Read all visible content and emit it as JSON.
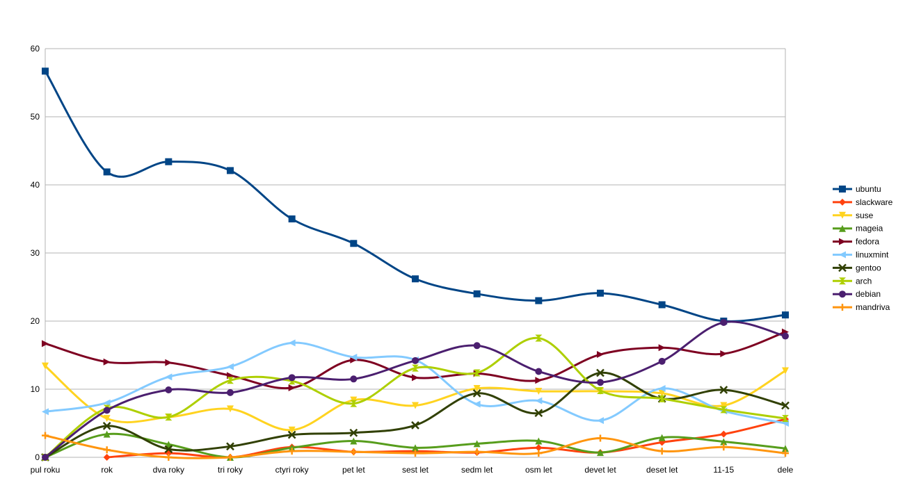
{
  "chart_data": {
    "type": "line",
    "smooth": true,
    "title": "",
    "xlabel": "",
    "ylabel": "",
    "ylim": [
      0,
      60
    ],
    "yticks": [
      0,
      10,
      20,
      30,
      40,
      50,
      60
    ],
    "grid": "horizontal",
    "legend_position": "right",
    "categories": [
      "pul roku",
      "rok",
      "dva roky",
      "tri roky",
      "ctyri roky",
      "pet let",
      "sest let",
      "sedm let",
      "osm let",
      "devet let",
      "deset let",
      "11-15",
      "dele"
    ],
    "series": [
      {
        "name": "ubuntu",
        "color": "#004586",
        "marker": "square",
        "values": [
          56.7,
          41.9,
          43.4,
          42.1,
          35.0,
          31.4,
          26.2,
          24.0,
          23.0,
          24.1,
          22.4,
          20.0,
          20.9
        ]
      },
      {
        "name": "slackware",
        "color": "#ff420e",
        "marker": "diamond",
        "values": [
          null,
          0,
          0.6,
          0,
          1.5,
          0.8,
          0.9,
          0.7,
          1.4,
          0.7,
          2.2,
          3.4,
          5.6
        ]
      },
      {
        "name": "suse",
        "color": "#ffd320",
        "marker": "triangle-down",
        "values": [
          13.4,
          5.7,
          5.9,
          7.1,
          4.0,
          8.4,
          7.6,
          10.1,
          9.7,
          9.7,
          9.4,
          7.6,
          12.7
        ]
      },
      {
        "name": "mageia",
        "color": "#579d1c",
        "marker": "triangle-up",
        "values": [
          0,
          3.4,
          1.9,
          0,
          1.4,
          2.4,
          1.4,
          2.0,
          2.4,
          0.7,
          2.9,
          2.3,
          1.3
        ]
      },
      {
        "name": "fedora",
        "color": "#7e0021",
        "marker": "triangle-right",
        "values": [
          16.7,
          14.0,
          13.9,
          12.0,
          10.2,
          14.3,
          11.7,
          12.3,
          11.3,
          15.1,
          16.1,
          15.2,
          18.4
        ]
      },
      {
        "name": "linuxmint",
        "color": "#83caff",
        "marker": "triangle-left",
        "values": [
          6.7,
          8.0,
          11.8,
          13.3,
          16.8,
          14.7,
          14.3,
          7.8,
          8.3,
          5.4,
          10.1,
          6.8,
          5.0
        ]
      },
      {
        "name": "gentoo",
        "color": "#314004",
        "marker": "x",
        "values": [
          0,
          4.6,
          1.2,
          1.6,
          3.3,
          3.6,
          4.7,
          9.4,
          6.5,
          12.4,
          8.6,
          9.9,
          7.6
        ]
      },
      {
        "name": "arch",
        "color": "#aecf00",
        "marker": "hourglass",
        "values": [
          0,
          7.2,
          5.9,
          11.3,
          11.2,
          7.9,
          13.1,
          12.4,
          17.5,
          9.8,
          8.6,
          7.0,
          5.7
        ]
      },
      {
        "name": "debian",
        "color": "#4b1f6f",
        "marker": "circle",
        "values": [
          0,
          6.9,
          9.9,
          9.5,
          11.7,
          11.5,
          14.2,
          16.4,
          12.6,
          11.0,
          14.1,
          19.8,
          17.8
        ]
      },
      {
        "name": "mandriva",
        "color": "#ff950e",
        "marker": "plus",
        "values": [
          3.2,
          1.1,
          0,
          0,
          0.9,
          0.8,
          0.6,
          0.8,
          0.6,
          2.8,
          0.9,
          1.5,
          0.6
        ]
      }
    ]
  }
}
